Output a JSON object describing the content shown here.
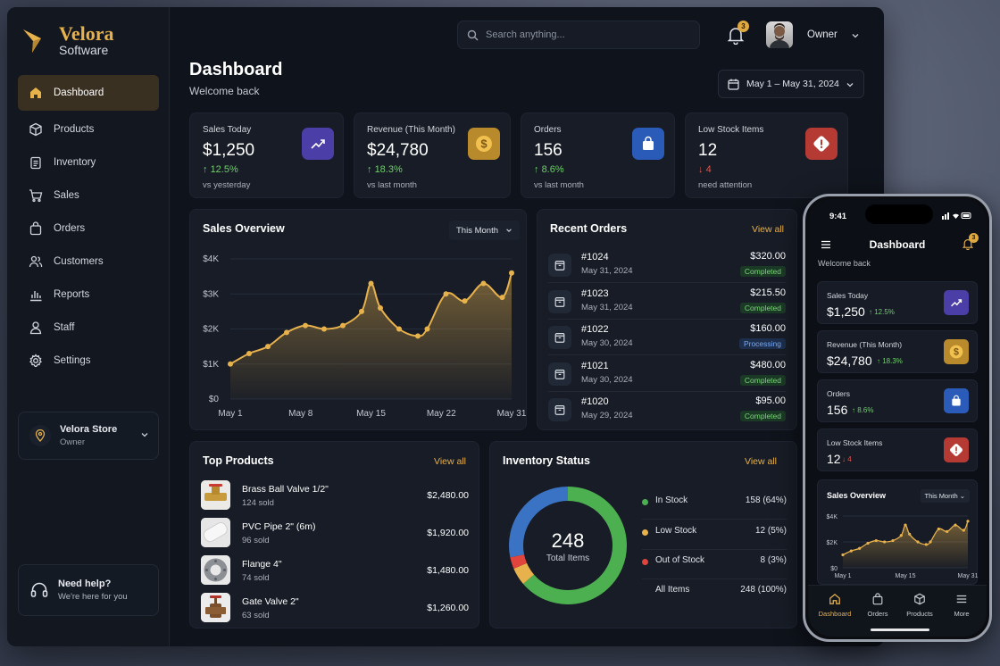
{
  "brand": {
    "name": "Velora",
    "sub": "Software",
    "accent": "#e7b14c"
  },
  "sidebar": {
    "items": [
      {
        "label": "Dashboard",
        "icon": "home-icon",
        "active": true
      },
      {
        "label": "Products",
        "icon": "box-icon"
      },
      {
        "label": "Inventory",
        "icon": "clipboard-icon"
      },
      {
        "label": "Sales",
        "icon": "cart-icon"
      },
      {
        "label": "Orders",
        "icon": "bag-icon"
      },
      {
        "label": "Customers",
        "icon": "users-icon"
      },
      {
        "label": "Reports",
        "icon": "bar-chart-icon"
      },
      {
        "label": "Staff",
        "icon": "person-icon"
      },
      {
        "label": "Settings",
        "icon": "gear-icon"
      }
    ],
    "store": {
      "name": "Velora Store",
      "role": "Owner"
    },
    "help": {
      "title": "Need help?",
      "sub": "We're here for you"
    }
  },
  "header": {
    "search_placeholder": "Search anything...",
    "notifications": "3",
    "user": "Owner",
    "title": "Dashboard",
    "subtitle": "Welcome back",
    "date_range": "May 1 – May 31, 2024"
  },
  "stats": [
    {
      "label": "Sales Today",
      "value": "$1,250",
      "delta": "12.5%",
      "dir": "up",
      "note": "vs yesterday",
      "icon": "trend-up-icon",
      "color": "#4b3ea6"
    },
    {
      "label": "Revenue (This Month)",
      "value": "$24,780",
      "delta": "18.3%",
      "dir": "up",
      "note": "vs last month",
      "icon": "dollar-icon",
      "color": "#b98a2c"
    },
    {
      "label": "Orders",
      "value": "156",
      "delta": "8.6%",
      "dir": "up",
      "note": "vs last month",
      "icon": "shopping-bag-icon",
      "color": "#2a5bb8"
    },
    {
      "label": "Low Stock Items",
      "value": "12",
      "delta": "4",
      "dir": "down",
      "note": "need attention",
      "icon": "alert-icon",
      "color": "#b53a34"
    }
  ],
  "sales_overview": {
    "title": "Sales Overview",
    "period": "This Month"
  },
  "chart_data": {
    "type": "area",
    "title": "Sales Overview",
    "x": [
      1,
      3,
      5,
      7,
      9,
      11,
      13,
      15,
      16,
      17,
      19,
      21,
      22,
      24,
      26,
      28,
      30,
      31
    ],
    "x_ticks": [
      "May 1",
      "May 8",
      "May 15",
      "May 22",
      "May 31"
    ],
    "y_ticks": [
      "$0",
      "$1K",
      "$2K",
      "$3K",
      "$4K"
    ],
    "values": [
      1000,
      1300,
      1500,
      1900,
      2100,
      2000,
      2100,
      2500,
      3300,
      2600,
      2000,
      1800,
      2000,
      3000,
      2800,
      3300,
      2900,
      3600
    ],
    "ylim": [
      0,
      4000
    ],
    "color": "#e7b14c"
  },
  "recent_orders": {
    "title": "Recent Orders",
    "view_all": "View all",
    "rows": [
      {
        "id": "#1024",
        "date": "May 31, 2024",
        "amount": "$320.00",
        "status": "Completed"
      },
      {
        "id": "#1023",
        "date": "May 31, 2024",
        "amount": "$215.50",
        "status": "Completed"
      },
      {
        "id": "#1022",
        "date": "May 30, 2024",
        "amount": "$160.00",
        "status": "Processing"
      },
      {
        "id": "#1021",
        "date": "May 30, 2024",
        "amount": "$480.00",
        "status": "Completed"
      },
      {
        "id": "#1020",
        "date": "May 29, 2024",
        "amount": "$95.00",
        "status": "Completed"
      }
    ]
  },
  "top_products": {
    "title": "Top Products",
    "view_all": "View all",
    "rows": [
      {
        "name": "Brass Ball Valve 1/2\"",
        "sold": "124 sold",
        "amount": "$2,480.00"
      },
      {
        "name": "PVC Pipe 2\" (6m)",
        "sold": "96 sold",
        "amount": "$1,920.00"
      },
      {
        "name": "Flange 4\"",
        "sold": "74 sold",
        "amount": "$1,480.00"
      },
      {
        "name": "Gate Valve 2\"",
        "sold": "63 sold",
        "amount": "$1,260.00"
      }
    ]
  },
  "inventory": {
    "title": "Inventory Status",
    "view_all": "View all",
    "total": "248",
    "total_label": "Total Items",
    "rows": [
      {
        "label": "In Stock",
        "value": "158 (64%)",
        "color": "#4caf50",
        "count": 158
      },
      {
        "label": "Low Stock",
        "value": "12 (5%)",
        "color": "#e7b14c",
        "count": 12
      },
      {
        "label": "Out of Stock",
        "value": "8 (3%)",
        "color": "#e0443c",
        "count": 8
      },
      {
        "label": "All Items",
        "value": "248 (100%)"
      }
    ],
    "ring_rest_color": "#3b73c4"
  },
  "phone": {
    "time": "9:41",
    "title": "Dashboard",
    "subtitle": "Welcome back",
    "notifications": "3",
    "cards": [
      {
        "label": "Sales Today",
        "value": "$1,250",
        "delta": "12.5%",
        "dir": "up"
      },
      {
        "label": "Revenue (This Month)",
        "value": "$24,780",
        "delta": "18.3%",
        "dir": "up"
      },
      {
        "label": "Orders",
        "value": "156",
        "delta": "8.6%",
        "dir": "up"
      },
      {
        "label": "Low Stock Items",
        "value": "12",
        "delta": "4",
        "dir": "down"
      }
    ],
    "sales_title": "Sales Overview",
    "sales_period": "This Month",
    "y_ticks": [
      "$0",
      "$2K",
      "$4K"
    ],
    "x_ticks": [
      "May 1",
      "May 15",
      "May 31"
    ],
    "tabs": [
      {
        "label": "Dashboard",
        "active": true
      },
      {
        "label": "Orders"
      },
      {
        "label": "Products"
      },
      {
        "label": "More"
      }
    ]
  }
}
